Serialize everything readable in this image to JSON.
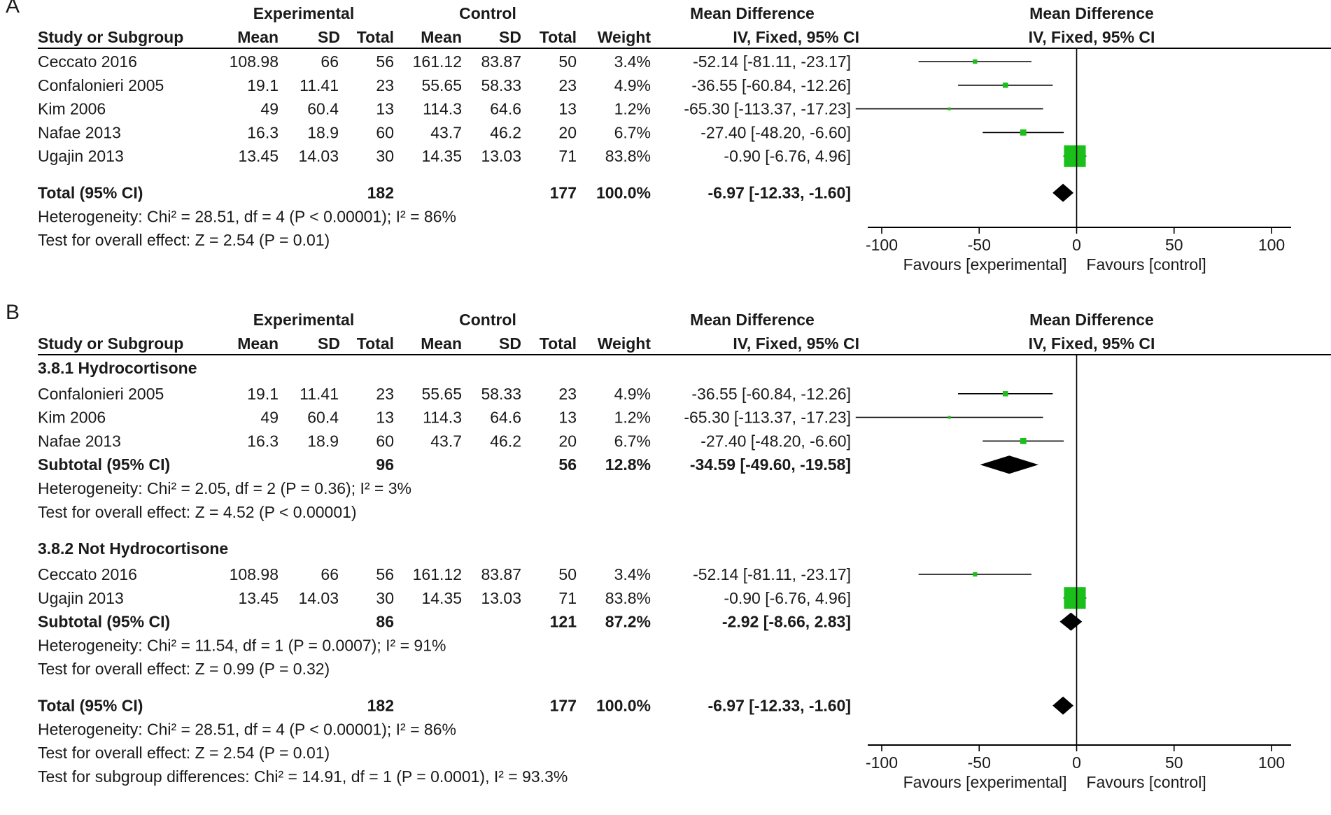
{
  "figure": {
    "columns": {
      "experimental": "Experimental",
      "control": "Control",
      "md_group": "Mean Difference",
      "study": "Study or Subgroup",
      "mean": "Mean",
      "sd": "SD",
      "total": "Total",
      "weight": "Weight",
      "method": "IV, Fixed, 95% CI"
    },
    "favours_left": "Favours [experimental]",
    "favours_right": "Favours [control]",
    "ticks": [
      "-100",
      "-50",
      "0",
      "50",
      "100"
    ]
  },
  "chart_data": [
    {
      "type": "forest",
      "panel": "A",
      "title": "Mean Difference IV, Fixed, 95% CI",
      "xlim": [
        -100,
        100
      ],
      "xticks": [
        -100,
        -50,
        0,
        50,
        100
      ],
      "xlabel_left": "Favours [experimental]",
      "xlabel_right": "Favours [control]",
      "rows": [
        {
          "kind": "study",
          "study": "Ceccato 2016",
          "e_mean": "108.98",
          "e_sd": "66",
          "e_total": "56",
          "c_mean": "161.12",
          "c_sd": "83.87",
          "c_total": "50",
          "weight": "3.4%",
          "ci_text": "-52.14 [-81.11, -23.17]",
          "md": -52.14,
          "lo": -81.11,
          "hi": -23.17,
          "w": 3.4
        },
        {
          "kind": "study",
          "study": "Confalonieri 2005",
          "e_mean": "19.1",
          "e_sd": "11.41",
          "e_total": "23",
          "c_mean": "55.65",
          "c_sd": "58.33",
          "c_total": "23",
          "weight": "4.9%",
          "ci_text": "-36.55 [-60.84, -12.26]",
          "md": -36.55,
          "lo": -60.84,
          "hi": -12.26,
          "w": 4.9
        },
        {
          "kind": "study",
          "study": "Kim 2006",
          "e_mean": "49",
          "e_sd": "60.4",
          "e_total": "13",
          "c_mean": "114.3",
          "c_sd": "64.6",
          "c_total": "13",
          "weight": "1.2%",
          "ci_text": "-65.30 [-113.37, -17.23]",
          "md": -65.3,
          "lo": -113.37,
          "hi": -17.23,
          "w": 1.2
        },
        {
          "kind": "study",
          "study": "Nafae 2013",
          "e_mean": "16.3",
          "e_sd": "18.9",
          "e_total": "60",
          "c_mean": "43.7",
          "c_sd": "46.2",
          "c_total": "20",
          "weight": "6.7%",
          "ci_text": "-27.40 [-48.20, -6.60]",
          "md": -27.4,
          "lo": -48.2,
          "hi": -6.6,
          "w": 6.7
        },
        {
          "kind": "study",
          "study": "Ugajin 2013",
          "e_mean": "13.45",
          "e_sd": "14.03",
          "e_total": "30",
          "c_mean": "14.35",
          "c_sd": "13.03",
          "c_total": "71",
          "weight": "83.8%",
          "ci_text": "-0.90 [-6.76, 4.96]",
          "md": -0.9,
          "lo": -6.76,
          "hi": 4.96,
          "w": 83.8
        },
        {
          "kind": "blank"
        },
        {
          "kind": "total",
          "study": "Total (95% CI)",
          "e_total": "182",
          "c_total": "177",
          "weight": "100.0%",
          "ci_text": "-6.97 [-12.33, -1.60]",
          "md": -6.97,
          "lo": -12.33,
          "hi": -1.6
        },
        {
          "kind": "note",
          "text": "Heterogeneity: Chi² = 28.51, df = 4 (P < 0.00001); I² = 86%"
        },
        {
          "kind": "note",
          "text": "Test for overall effect: Z = 2.54 (P = 0.01)"
        }
      ]
    },
    {
      "type": "forest",
      "panel": "B",
      "title": "Mean Difference IV, Fixed, 95% CI",
      "xlim": [
        -100,
        100
      ],
      "xticks": [
        -100,
        -50,
        0,
        50,
        100
      ],
      "xlabel_left": "Favours [experimental]",
      "xlabel_right": "Favours [control]",
      "rows": [
        {
          "kind": "subgroup",
          "study": "3.8.1 Hydrocortisone"
        },
        {
          "kind": "study",
          "study": "Confalonieri 2005",
          "e_mean": "19.1",
          "e_sd": "11.41",
          "e_total": "23",
          "c_mean": "55.65",
          "c_sd": "58.33",
          "c_total": "23",
          "weight": "4.9%",
          "ci_text": "-36.55 [-60.84, -12.26]",
          "md": -36.55,
          "lo": -60.84,
          "hi": -12.26,
          "w": 4.9
        },
        {
          "kind": "study",
          "study": "Kim 2006",
          "e_mean": "49",
          "e_sd": "60.4",
          "e_total": "13",
          "c_mean": "114.3",
          "c_sd": "64.6",
          "c_total": "13",
          "weight": "1.2%",
          "ci_text": "-65.30 [-113.37, -17.23]",
          "md": -65.3,
          "lo": -113.37,
          "hi": -17.23,
          "w": 1.2
        },
        {
          "kind": "study",
          "study": "Nafae 2013",
          "e_mean": "16.3",
          "e_sd": "18.9",
          "e_total": "60",
          "c_mean": "43.7",
          "c_sd": "46.2",
          "c_total": "20",
          "weight": "6.7%",
          "ci_text": "-27.40 [-48.20, -6.60]",
          "md": -27.4,
          "lo": -48.2,
          "hi": -6.6,
          "w": 6.7
        },
        {
          "kind": "subtotal",
          "study": "Subtotal (95% CI)",
          "e_total": "96",
          "c_total": "56",
          "weight": "12.8%",
          "ci_text": "-34.59 [-49.60, -19.58]",
          "md": -34.59,
          "lo": -49.6,
          "hi": -19.58
        },
        {
          "kind": "note",
          "text": "Heterogeneity: Chi² = 2.05, df = 2 (P = 0.36); I² = 3%"
        },
        {
          "kind": "note",
          "text": "Test for overall effect: Z = 4.52 (P < 0.00001)"
        },
        {
          "kind": "blank"
        },
        {
          "kind": "subgroup",
          "study": "3.8.2 Not Hydrocortisone"
        },
        {
          "kind": "study",
          "study": "Ceccato 2016",
          "e_mean": "108.98",
          "e_sd": "66",
          "e_total": "56",
          "c_mean": "161.12",
          "c_sd": "83.87",
          "c_total": "50",
          "weight": "3.4%",
          "ci_text": "-52.14 [-81.11, -23.17]",
          "md": -52.14,
          "lo": -81.11,
          "hi": -23.17,
          "w": 3.4
        },
        {
          "kind": "study",
          "study": "Ugajin 2013",
          "e_mean": "13.45",
          "e_sd": "14.03",
          "e_total": "30",
          "c_mean": "14.35",
          "c_sd": "13.03",
          "c_total": "71",
          "weight": "83.8%",
          "ci_text": "-0.90 [-6.76, 4.96]",
          "md": -0.9,
          "lo": -6.76,
          "hi": 4.96,
          "w": 83.8
        },
        {
          "kind": "subtotal",
          "study": "Subtotal (95% CI)",
          "e_total": "86",
          "c_total": "121",
          "weight": "87.2%",
          "ci_text": "-2.92 [-8.66, 2.83]",
          "md": -2.92,
          "lo": -8.66,
          "hi": 2.83
        },
        {
          "kind": "note",
          "text": "Heterogeneity: Chi² = 11.54, df = 1 (P = 0.0007); I² = 91%"
        },
        {
          "kind": "note",
          "text": "Test for overall effect: Z = 0.99 (P = 0.32)"
        },
        {
          "kind": "blank"
        },
        {
          "kind": "total",
          "study": "Total (95% CI)",
          "e_total": "182",
          "c_total": "177",
          "weight": "100.0%",
          "ci_text": "-6.97 [-12.33, -1.60]",
          "md": -6.97,
          "lo": -12.33,
          "hi": -1.6
        },
        {
          "kind": "note",
          "text": "Heterogeneity: Chi² = 28.51, df = 4 (P < 0.00001); I² = 86%"
        },
        {
          "kind": "note",
          "text": "Test for overall effect: Z = 2.54 (P = 0.01)"
        },
        {
          "kind": "note",
          "text": "Test for subgroup differences: Chi² = 14.91, df = 1 (P = 0.0001), I² = 93.3%"
        }
      ]
    }
  ],
  "colors": {
    "study_marker": "#1bbf1b",
    "summary_marker": "#000000",
    "text": "#1a1a1a",
    "line": "#000000"
  }
}
